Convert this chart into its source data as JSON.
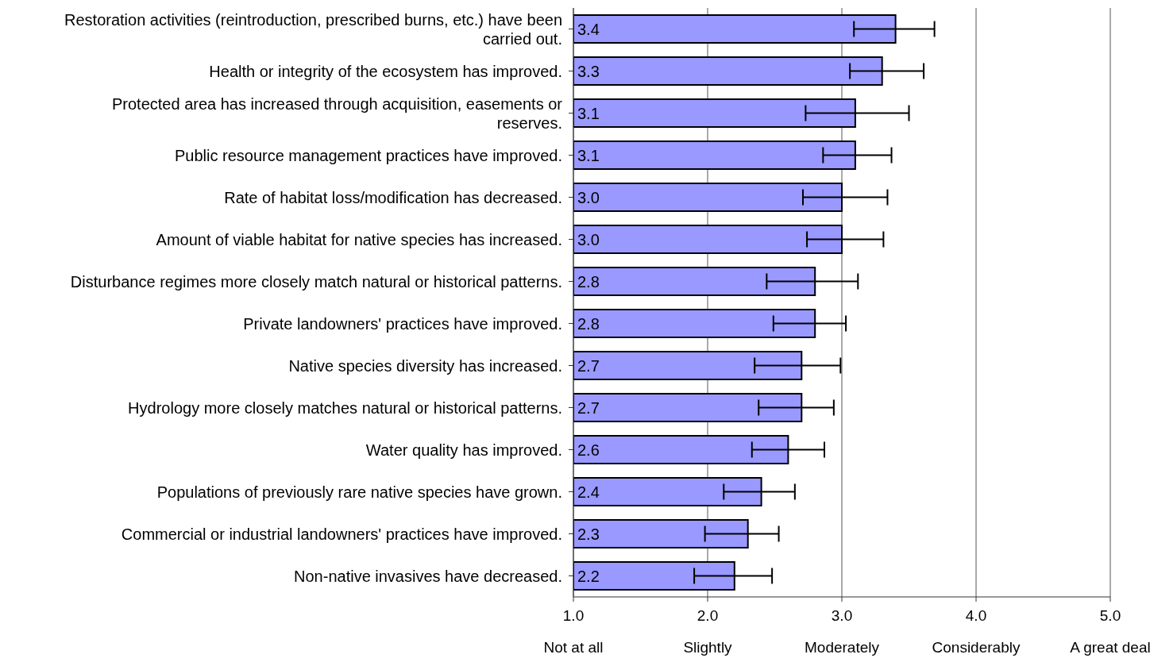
{
  "chart_data": {
    "type": "bar",
    "orientation": "horizontal",
    "categories": [
      "Restoration activities (reintroduction, prescribed burns, etc.) have been carried out.",
      "Health or integrity of the ecosystem has improved.",
      "Protected area has increased through acquisition, easements or reserves.",
      "Public resource management practices have improved.",
      "Rate of habitat loss/modification has decreased.",
      "Amount of viable habitat for native species has increased.",
      "Disturbance regimes more closely match natural or historical patterns.",
      "Private landowners' practices have improved.",
      "Native species diversity has increased.",
      "Hydrology more closely matches natural or historical patterns.",
      "Water quality has improved.",
      "Populations of previously rare native species have grown.",
      "Commercial or industrial landowners' practices have improved.",
      "Non-native invasives have decreased."
    ],
    "values": [
      3.4,
      3.3,
      3.1,
      3.1,
      3.0,
      3.0,
      2.8,
      2.8,
      2.7,
      2.7,
      2.6,
      2.4,
      2.3,
      2.2
    ],
    "errors": [
      [
        3.09,
        3.69
      ],
      [
        3.06,
        3.61
      ],
      [
        2.73,
        3.5
      ],
      [
        2.86,
        3.37
      ],
      [
        2.71,
        3.34
      ],
      [
        2.74,
        3.31
      ],
      [
        2.44,
        3.12
      ],
      [
        2.49,
        3.03
      ],
      [
        2.35,
        2.99
      ],
      [
        2.38,
        2.94
      ],
      [
        2.33,
        2.87
      ],
      [
        2.12,
        2.65
      ],
      [
        1.98,
        2.53
      ],
      [
        1.9,
        2.48
      ]
    ],
    "value_labels": [
      "3.4",
      "3.3",
      "3.1",
      "3.1",
      "3.0",
      "3.0",
      "2.8",
      "2.8",
      "2.7",
      "2.7",
      "2.6",
      "2.4",
      "2.3",
      "2.2"
    ],
    "color": "#9999ff",
    "xlim": [
      1,
      5
    ],
    "xticks": [
      {
        "value": 1,
        "label": "1.0\nNot at all"
      },
      {
        "value": 2,
        "label": "2.0\nSlightly"
      },
      {
        "value": 3,
        "label": "3.0\nModerately"
      },
      {
        "value": 4,
        "label": "4.0\nConsiderably"
      },
      {
        "value": 5,
        "label": "5.0\nA great deal"
      }
    ],
    "grid": "x",
    "legend": false
  }
}
